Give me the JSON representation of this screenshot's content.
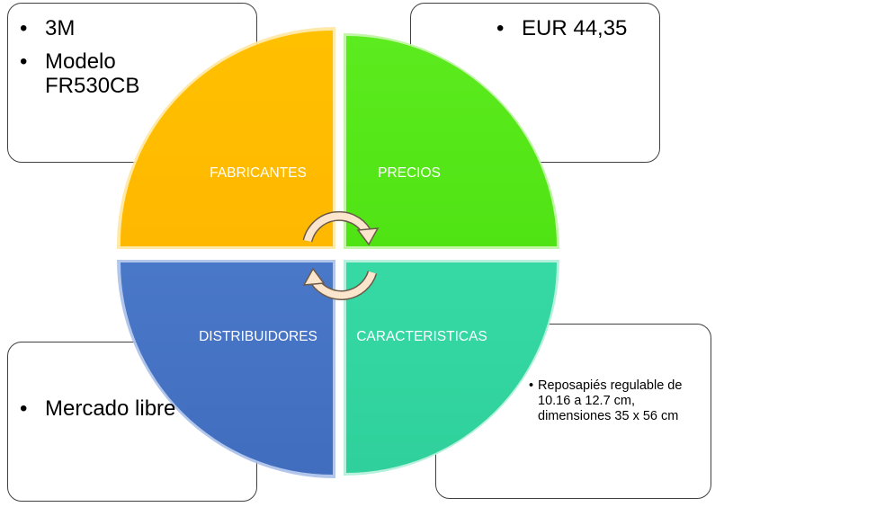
{
  "quadrants": {
    "fabricantes": {
      "label": "FABRICANTES",
      "color": "#FFC000"
    },
    "precios": {
      "label": "PRECIOS",
      "color": "#56E81A"
    },
    "distribuidores": {
      "label": "DISTRIBUIDORES",
      "color": "#4472C4"
    },
    "caracteristicas": {
      "label": "CARACTERISTICAS",
      "color": "#33D6A0"
    }
  },
  "boxes": {
    "fabricantes_items": [
      "3M",
      "Modelo FR530CB"
    ],
    "precios_items": [
      "EUR 44,35"
    ],
    "distribuidores_items": [
      "Mercado libre"
    ],
    "caracteristicas_items": [
      "Reposapiés regulable de 10.16 a 12.7 cm, dimensiones 35 x 56 cm"
    ]
  },
  "arrow_color": "#FBE5CC"
}
